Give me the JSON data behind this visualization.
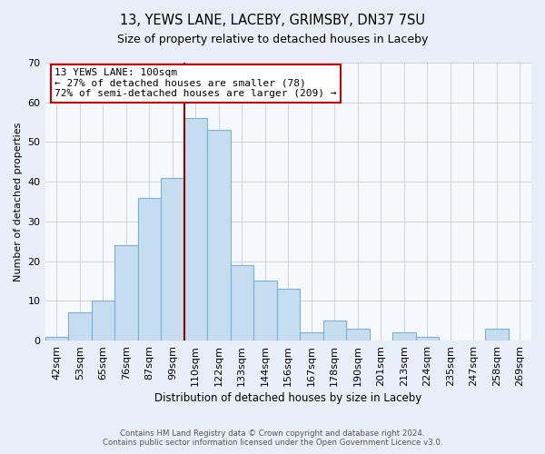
{
  "title1": "13, YEWS LANE, LACEBY, GRIMSBY, DN37 7SU",
  "title2": "Size of property relative to detached houses in Laceby",
  "xlabel": "Distribution of detached houses by size in Laceby",
  "ylabel": "Number of detached properties",
  "bar_labels": [
    "42sqm",
    "53sqm",
    "65sqm",
    "76sqm",
    "87sqm",
    "99sqm",
    "110sqm",
    "122sqm",
    "133sqm",
    "144sqm",
    "156sqm",
    "167sqm",
    "178sqm",
    "190sqm",
    "201sqm",
    "213sqm",
    "224sqm",
    "235sqm",
    "247sqm",
    "258sqm",
    "269sqm"
  ],
  "bar_values": [
    1,
    7,
    10,
    24,
    36,
    41,
    56,
    53,
    19,
    15,
    13,
    2,
    5,
    3,
    0,
    2,
    1,
    0,
    0,
    3,
    0
  ],
  "bar_color": "#c6ddf0",
  "bar_edge_color": "#7ab0d4",
  "vline_x": 6.0,
  "vline_color": "#8b0000",
  "annotation_title": "13 YEWS LANE: 100sqm",
  "annotation_line1": "← 27% of detached houses are smaller (78)",
  "annotation_line2": "72% of semi-detached houses are larger (209) →",
  "annotation_box_color": "#ffffff",
  "annotation_box_edge_color": "#cc0000",
  "ylim": [
    0,
    70
  ],
  "yticks": [
    0,
    10,
    20,
    30,
    40,
    50,
    60,
    70
  ],
  "footer1": "Contains HM Land Registry data © Crown copyright and database right 2024.",
  "footer2": "Contains public sector information licensed under the Open Government Licence v3.0.",
  "bg_color": "#e8eef7",
  "plot_bg_color": "#f5f8fd"
}
